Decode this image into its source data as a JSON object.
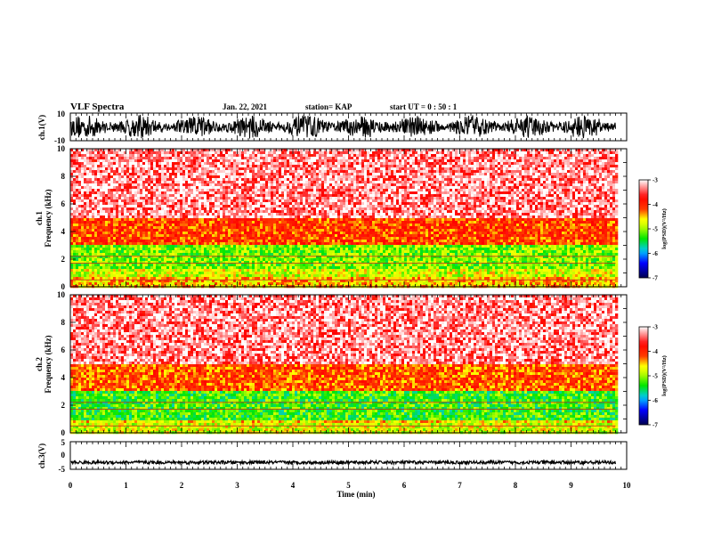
{
  "header": {
    "title": "VLF Spectra",
    "date": "Jan. 22, 2021",
    "station": "station= KAP",
    "start_ut": "start  UT =   0 : 50 : 1"
  },
  "chart_data": [
    {
      "type": "line",
      "id": "ch1-waveform",
      "ylabel": "ch.1(V)",
      "ylim": [
        -10,
        10
      ],
      "yticks": [
        "10",
        "-10"
      ],
      "xlim": [
        0,
        10
      ],
      "description_of_signal": "dense broadband waveform spanning roughly -8 to 8 V over 0 to 9.8 min"
    },
    {
      "type": "heatmap",
      "id": "ch1-spectrogram",
      "ylabel": [
        "ch.1",
        "Frequency  (kHz)"
      ],
      "ylim": [
        0,
        10
      ],
      "yticks": [
        "0",
        "2",
        "4",
        "6",
        "8",
        "10"
      ],
      "xlim": [
        0,
        10
      ],
      "x_extent": [
        0,
        9.8
      ],
      "bands": [
        {
          "from_khz": 0,
          "to_khz": 0.8,
          "level": -4.5
        },
        {
          "from_khz": 0.8,
          "to_khz": 1.2,
          "level": -4.8
        },
        {
          "from_khz": 1.2,
          "to_khz": 3.0,
          "level": -5.1
        },
        {
          "from_khz": 3.0,
          "to_khz": 5.0,
          "level": -4.1
        },
        {
          "from_khz": 5.0,
          "to_khz": 10,
          "level": -3.3
        }
      ],
      "colorbar": {
        "label": "log(PSD)(V²/Hz)",
        "range": [
          -7,
          -3
        ],
        "ticks": [
          "-3",
          "-4",
          "-5",
          "-6",
          "-7"
        ]
      }
    },
    {
      "type": "heatmap",
      "id": "ch2-spectrogram",
      "ylabel": [
        "ch.2",
        "Frequency  (kHz)"
      ],
      "ylim": [
        0,
        10
      ],
      "yticks": [
        "0",
        "2",
        "4",
        "6",
        "8",
        "10"
      ],
      "xlim": [
        0,
        10
      ],
      "x_extent": [
        0,
        9.8
      ],
      "bands": [
        {
          "from_khz": 0,
          "to_khz": 0.8,
          "level": -4.8
        },
        {
          "from_khz": 0.8,
          "to_khz": 1.0,
          "level": -4.6
        },
        {
          "from_khz": 1.0,
          "to_khz": 3.0,
          "level": -5.3
        },
        {
          "from_khz": 3.0,
          "to_khz": 5.0,
          "level": -4.2
        },
        {
          "from_khz": 5.0,
          "to_khz": 10,
          "level": -3.3
        }
      ],
      "colorbar": {
        "label": "log(PSD)(V²/Hz)",
        "range": [
          -7,
          -3
        ],
        "ticks": [
          "-3",
          "-4",
          "-5",
          "-6",
          "-7"
        ]
      }
    },
    {
      "type": "line",
      "id": "ch3-waveform",
      "ylabel": "ch.3(V)",
      "ylim": [
        -5,
        5
      ],
      "yticks": [
        "5",
        "0",
        "-5"
      ],
      "xlim": [
        0,
        10
      ],
      "baseline_v": -2.5,
      "amplitude_v": 0.6
    }
  ],
  "xaxis": {
    "label": "Time  (min)",
    "ticks": [
      "0",
      "1",
      "2",
      "3",
      "4",
      "5",
      "6",
      "7",
      "8",
      "9",
      "10"
    ]
  },
  "colors": {
    "waveform": "#000000",
    "high_psd": "#ff0000",
    "mid_psd": "#ffff00",
    "low_psd": "#00ff00"
  }
}
